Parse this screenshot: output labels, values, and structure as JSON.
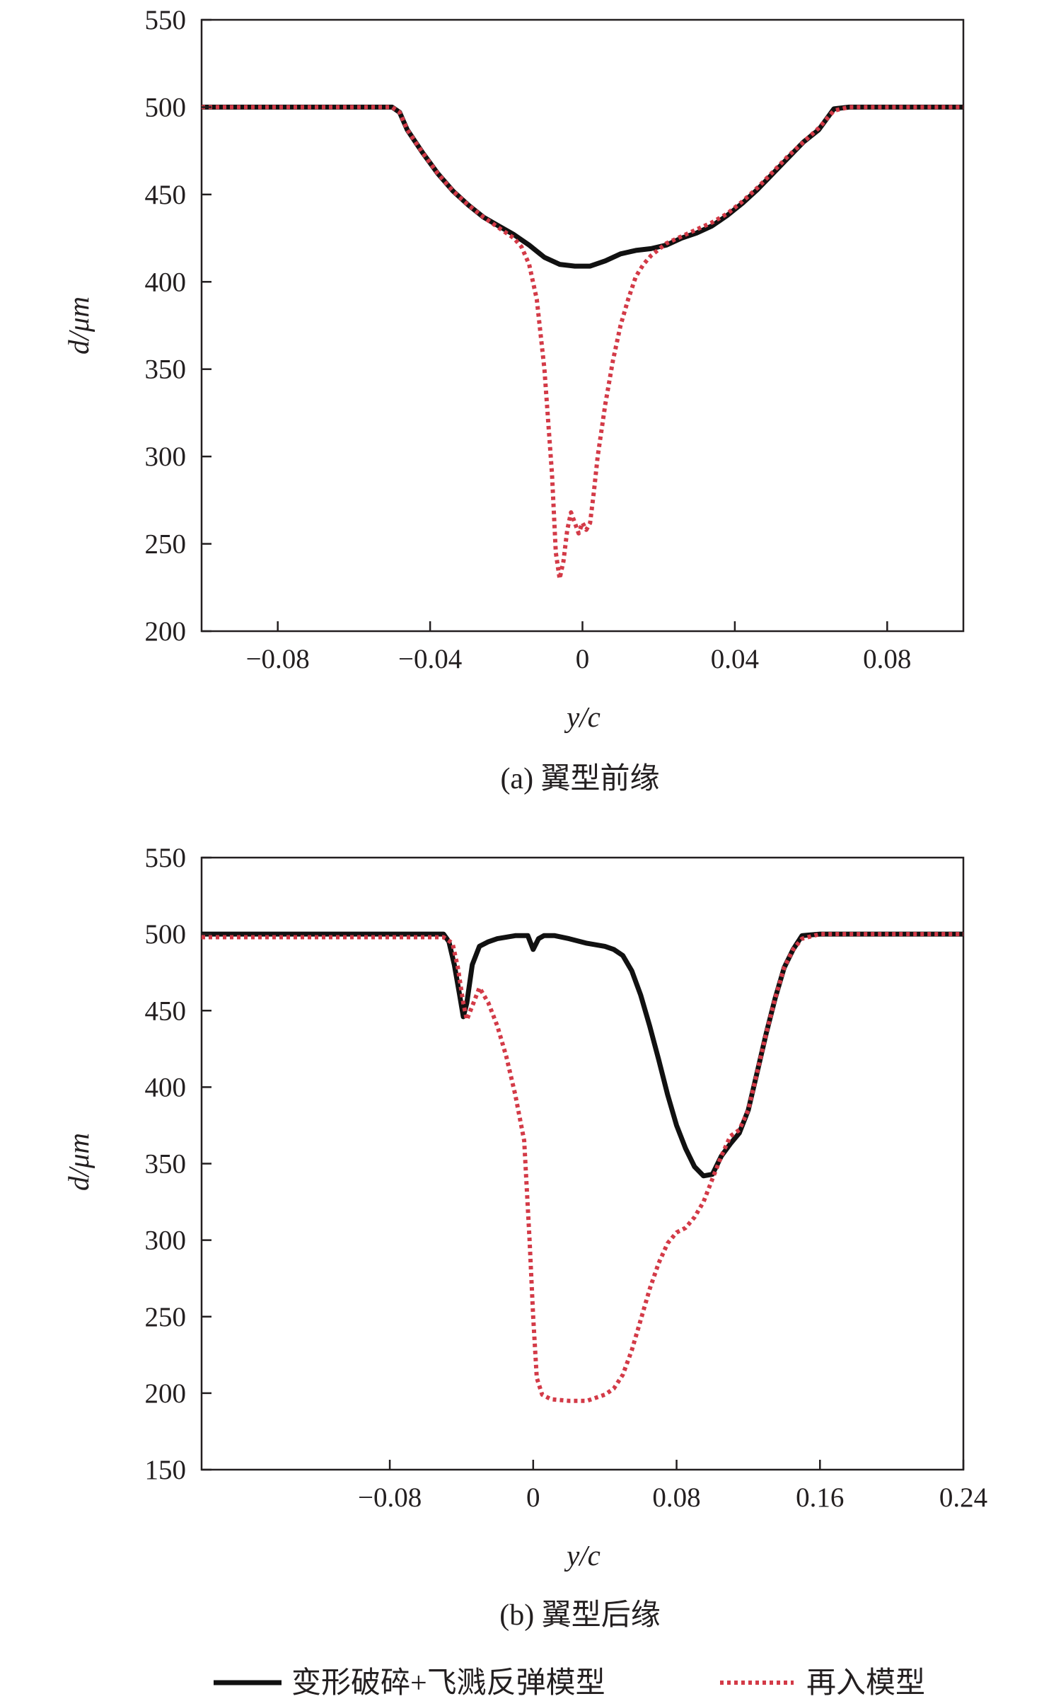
{
  "legend": {
    "solid_label": "变形破碎+飞溅反弹模型",
    "dotted_label": "再入模型"
  },
  "colors": {
    "solid": "#111111",
    "dotted": "#d33a47",
    "axis": "#231f20"
  },
  "chart_data": [
    {
      "type": "line",
      "caption": "(a) 翼型前缘",
      "xlabel": "y/c",
      "ylabel": "d/μm",
      "xlim": [
        -0.1,
        0.1
      ],
      "ylim": [
        200,
        550
      ],
      "xticks": [
        -0.08,
        -0.04,
        0,
        0.04,
        0.08
      ],
      "xticklabels": [
        "−0.08",
        "−0.04",
        "0",
        "0.04",
        "0.08"
      ],
      "yticks": [
        200,
        250,
        300,
        350,
        400,
        450,
        500,
        550
      ],
      "yticklabels": [
        "200",
        "250",
        "300",
        "350",
        "400",
        "450",
        "500",
        "550"
      ],
      "grid": false,
      "series": [
        {
          "name": "变形破碎+飞溅反弹模型",
          "style": "solid",
          "x": [
            -0.1,
            -0.05,
            -0.048,
            -0.046,
            -0.042,
            -0.038,
            -0.034,
            -0.03,
            -0.026,
            -0.022,
            -0.018,
            -0.014,
            -0.01,
            -0.006,
            -0.002,
            0.002,
            0.006,
            0.01,
            0.014,
            0.018,
            0.022,
            0.026,
            0.03,
            0.034,
            0.038,
            0.042,
            0.046,
            0.05,
            0.054,
            0.058,
            0.062,
            0.066,
            0.07,
            0.08,
            0.1
          ],
          "y": [
            500,
            500,
            497,
            487,
            474,
            462,
            452,
            444,
            437,
            432,
            427,
            421,
            414,
            410,
            409,
            409,
            412,
            416,
            418,
            419,
            421,
            425,
            428,
            432,
            438,
            445,
            453,
            462,
            471,
            480,
            487,
            499,
            500,
            500,
            500
          ]
        },
        {
          "name": "再入模型",
          "style": "dotted",
          "x": [
            -0.1,
            -0.05,
            -0.048,
            -0.046,
            -0.042,
            -0.038,
            -0.034,
            -0.03,
            -0.026,
            -0.022,
            -0.018,
            -0.016,
            -0.014,
            -0.012,
            -0.01,
            -0.008,
            -0.007,
            -0.006,
            -0.005,
            -0.004,
            -0.003,
            -0.002,
            -0.001,
            0,
            0.001,
            0.002,
            0.003,
            0.004,
            0.006,
            0.008,
            0.01,
            0.012,
            0.014,
            0.016,
            0.018,
            0.022,
            0.026,
            0.03,
            0.034,
            0.038,
            0.042,
            0.046,
            0.05,
            0.054,
            0.058,
            0.062,
            0.066,
            0.07,
            0.08,
            0.1
          ],
          "y": [
            500,
            500,
            497,
            487,
            474,
            462,
            452,
            444,
            437,
            431,
            425,
            420,
            410,
            390,
            350,
            290,
            245,
            230,
            240,
            258,
            268,
            262,
            256,
            262,
            258,
            262,
            280,
            300,
            330,
            355,
            375,
            390,
            403,
            410,
            415,
            422,
            426,
            430,
            434,
            439,
            446,
            454,
            463,
            472,
            480,
            488,
            498,
            500,
            500,
            500
          ]
        }
      ]
    },
    {
      "type": "line",
      "caption": "(b) 翼型后缘",
      "xlabel": "y/c",
      "ylabel": "d/μm",
      "xlim": [
        -0.185,
        0.24
      ],
      "ylim": [
        150,
        550
      ],
      "xticks": [
        -0.08,
        0,
        0.08,
        0.16,
        0.24
      ],
      "xticklabels": [
        "−0.08",
        "0",
        "0.08",
        "0.16",
        "0.24"
      ],
      "yticks": [
        150,
        200,
        250,
        300,
        350,
        400,
        450,
        500,
        550
      ],
      "yticklabels": [
        "150",
        "200",
        "250",
        "300",
        "350",
        "400",
        "450",
        "500",
        "550"
      ],
      "grid": false,
      "series": [
        {
          "name": "变形破碎+飞溅反弹模型",
          "style": "solid",
          "x": [
            -0.185,
            -0.05,
            -0.047,
            -0.044,
            -0.041,
            -0.039,
            -0.037,
            -0.034,
            -0.03,
            -0.025,
            -0.02,
            -0.01,
            -0.003,
            0,
            0.003,
            0.006,
            0.012,
            0.02,
            0.03,
            0.04,
            0.045,
            0.05,
            0.055,
            0.06,
            0.065,
            0.07,
            0.075,
            0.08,
            0.085,
            0.09,
            0.095,
            0.1,
            0.105,
            0.11,
            0.115,
            0.12,
            0.125,
            0.13,
            0.135,
            0.14,
            0.145,
            0.15,
            0.16,
            0.24
          ],
          "y": [
            500,
            500,
            495,
            480,
            460,
            446,
            455,
            480,
            492,
            495,
            497,
            499,
            499,
            490,
            497,
            499,
            499,
            497,
            494,
            492,
            490,
            486,
            476,
            460,
            440,
            418,
            395,
            375,
            360,
            348,
            342,
            343,
            355,
            363,
            370,
            385,
            410,
            435,
            458,
            478,
            490,
            499,
            500,
            500
          ]
        },
        {
          "name": "再入模型",
          "style": "dotted",
          "x": [
            -0.185,
            -0.05,
            -0.045,
            -0.042,
            -0.039,
            -0.037,
            -0.034,
            -0.03,
            -0.025,
            -0.02,
            -0.015,
            -0.01,
            -0.005,
            -0.002,
            0,
            0.002,
            0.005,
            0.01,
            0.02,
            0.03,
            0.04,
            0.045,
            0.05,
            0.055,
            0.06,
            0.065,
            0.07,
            0.075,
            0.08,
            0.085,
            0.09,
            0.095,
            0.1,
            0.105,
            0.11,
            0.115,
            0.12,
            0.125,
            0.13,
            0.135,
            0.14,
            0.145,
            0.15,
            0.16,
            0.24
          ],
          "y": [
            498,
            498,
            494,
            478,
            455,
            444,
            453,
            465,
            455,
            440,
            420,
            395,
            365,
            300,
            250,
            210,
            199,
            196,
            195,
            195,
            199,
            203,
            212,
            228,
            248,
            268,
            285,
            298,
            305,
            308,
            315,
            325,
            340,
            355,
            368,
            372,
            385,
            410,
            435,
            458,
            478,
            490,
            497,
            500,
            500
          ]
        }
      ]
    }
  ]
}
